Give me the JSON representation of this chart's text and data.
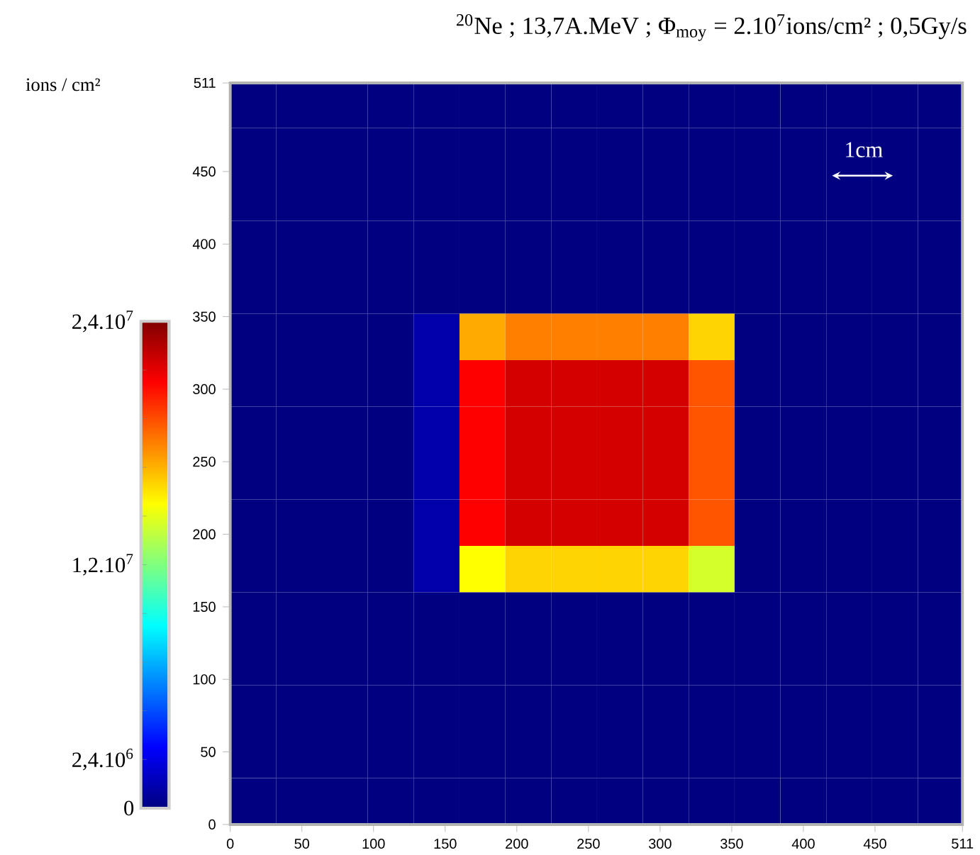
{
  "chart_data": {
    "type": "heatmap",
    "title": "$^{20}$Ne ; 13,7A.MeV ; Φ$_{moy}$ = 2.10$^{7}$ions/cm² ; 0,5Gy/s",
    "clabel": "ions / cm²",
    "annotations": [
      "1cm"
    ],
    "xlim": [
      0,
      511
    ],
    "ylim": [
      0,
      511
    ],
    "xticks": [
      0,
      50,
      100,
      150,
      200,
      250,
      300,
      350,
      400,
      450,
      511
    ],
    "yticks": [
      0,
      50,
      100,
      150,
      200,
      250,
      300,
      350,
      400,
      450,
      511
    ],
    "clim": [
      0,
      24000000
    ],
    "cticks": [
      0,
      {
        "value": 2400000,
        "label": "2,4.10$^{6}$"
      },
      {
        "value": 4800000,
        "label": null
      },
      {
        "value": 7200000,
        "label": null
      },
      {
        "value": 9600000,
        "label": null
      },
      {
        "value": 12000000,
        "label": "1,2.10$^{7}$"
      },
      {
        "value": 14400000,
        "label": null
      },
      {
        "value": 16800000,
        "label": null
      },
      {
        "value": 19200000,
        "label": null
      },
      {
        "value": 21600000,
        "label": null
      },
      {
        "value": 24000000,
        "label": "2,4.10$^{7}$"
      }
    ],
    "cells": [
      [
        0,
        0,
        0,
        0,
        0,
        0,
        0,
        0,
        0,
        0,
        0,
        0,
        0,
        0,
        0,
        0
      ],
      [
        0,
        0,
        0,
        0,
        0,
        0,
        0,
        0,
        0,
        0,
        0,
        0,
        0,
        0,
        0,
        0
      ],
      [
        0,
        0,
        0,
        0,
        0,
        0,
        0,
        0,
        0,
        0,
        0,
        0,
        0,
        0,
        0,
        0
      ],
      [
        0,
        0,
        0,
        0,
        0,
        0,
        0,
        0,
        0,
        0,
        0,
        0,
        0,
        0,
        0,
        0
      ],
      [
        0,
        0,
        0,
        0,
        0,
        0,
        0,
        0,
        0,
        0,
        0,
        0,
        0,
        0,
        0,
        0
      ],
      [
        0,
        0,
        0,
        0,
        1000000,
        17000000,
        18000000,
        18000000,
        18000000,
        18000000,
        16000000,
        0,
        0,
        0,
        0,
        0
      ],
      [
        0,
        0,
        0,
        0,
        1000000,
        21000000,
        22000000,
        22000000,
        22000000,
        22000000,
        19000000,
        0,
        0,
        0,
        0,
        0
      ],
      [
        0,
        0,
        0,
        0,
        1000000,
        21000000,
        22000000,
        22000000,
        22000000,
        22000000,
        19000000,
        0,
        0,
        0,
        0,
        0
      ],
      [
        0,
        0,
        0,
        0,
        1000000,
        21000000,
        22000000,
        22000000,
        22000000,
        22000000,
        19000000,
        0,
        0,
        0,
        0,
        0
      ],
      [
        0,
        0,
        0,
        0,
        1000000,
        21000000,
        22000000,
        22000000,
        22000000,
        22000000,
        19000000,
        0,
        0,
        0,
        0,
        0
      ],
      [
        0,
        0,
        0,
        0,
        1000000,
        15000000,
        16000000,
        16000000,
        16000000,
        16000000,
        14000000,
        0,
        0,
        0,
        0,
        0
      ],
      [
        0,
        0,
        0,
        0,
        0,
        0,
        0,
        0,
        0,
        0,
        0,
        0,
        0,
        0,
        0,
        0
      ],
      [
        0,
        0,
        0,
        0,
        0,
        0,
        0,
        0,
        0,
        0,
        0,
        0,
        0,
        0,
        0,
        0
      ],
      [
        0,
        0,
        0,
        0,
        0,
        0,
        0,
        0,
        0,
        0,
        0,
        0,
        0,
        0,
        0,
        0
      ],
      [
        0,
        0,
        0,
        0,
        0,
        0,
        0,
        0,
        0,
        0,
        0,
        0,
        0,
        0,
        0,
        0
      ],
      [
        0,
        0,
        0,
        0,
        0,
        0,
        0,
        0,
        0,
        0,
        0,
        0,
        0,
        0,
        0,
        0
      ]
    ]
  }
}
